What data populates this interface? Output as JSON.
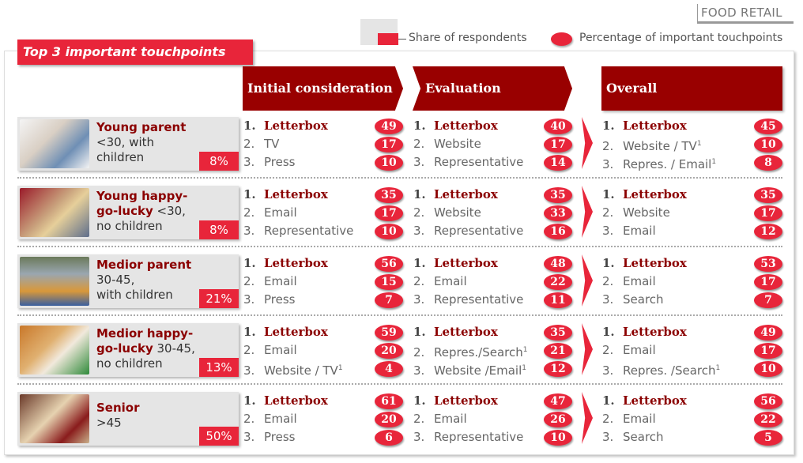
{
  "header": {
    "corner_label": "FOOD RETAIL",
    "title": "Top 3 important touchpoints",
    "legend": [
      {
        "icon": "bar-icon",
        "label": "Share of respondents"
      },
      {
        "icon": "ellipse-icon",
        "label": "Percentage of important touchpoints"
      }
    ]
  },
  "phases": [
    {
      "label": "Initial consideration"
    },
    {
      "label": "Evaluation"
    },
    {
      "label": "Overall"
    }
  ],
  "colors": {
    "accent": "#e8253a",
    "dark_red": "#990000",
    "card_bg": "#e5e5e5"
  },
  "segments": [
    {
      "name": "Young parent",
      "detail": "<30, with children",
      "share": "8%",
      "initial": [
        {
          "n": "1.",
          "t": "Letterbox",
          "v": "49"
        },
        {
          "n": "2.",
          "t": "TV",
          "v": "17"
        },
        {
          "n": "3.",
          "t": "Press",
          "v": "10"
        }
      ],
      "evaluation": [
        {
          "n": "1.",
          "t": "Letterbox",
          "v": "40"
        },
        {
          "n": "2.",
          "t": "Website",
          "v": "17"
        },
        {
          "n": "3.",
          "t": "Representative",
          "v": "14"
        }
      ],
      "overall": [
        {
          "n": "1.",
          "t": "Letterbox",
          "v": "45"
        },
        {
          "n": "2.",
          "t": "Website / TV",
          "sup": "1",
          "v": "10"
        },
        {
          "n": "3.",
          "t": "Repres. / Email",
          "sup": "1",
          "v": "8"
        }
      ]
    },
    {
      "name": "Young happy-go-lucky",
      "detail": "<30, no children",
      "share": "8%",
      "initial": [
        {
          "n": "1.",
          "t": "Letterbox",
          "v": "35"
        },
        {
          "n": "2.",
          "t": "Email",
          "v": "17"
        },
        {
          "n": "3.",
          "t": "Representative",
          "v": "10"
        }
      ],
      "evaluation": [
        {
          "n": "1.",
          "t": "Letterbox",
          "v": "35"
        },
        {
          "n": "2.",
          "t": "Website",
          "v": "33"
        },
        {
          "n": "3.",
          "t": "Representative",
          "v": "16"
        }
      ],
      "overall": [
        {
          "n": "1.",
          "t": "Letterbox",
          "v": "35"
        },
        {
          "n": "2.",
          "t": "Website",
          "v": "17"
        },
        {
          "n": "3.",
          "t": "Email",
          "v": "12"
        }
      ]
    },
    {
      "name": "Medior parent",
      "detail": "30-45, with children",
      "share": "21%",
      "initial": [
        {
          "n": "1.",
          "t": "Letterbox",
          "v": "56"
        },
        {
          "n": "2.",
          "t": "Email",
          "v": "15"
        },
        {
          "n": "3.",
          "t": "Press",
          "v": "7"
        }
      ],
      "evaluation": [
        {
          "n": "1.",
          "t": "Letterbox",
          "v": "48"
        },
        {
          "n": "2.",
          "t": "Email",
          "v": "22"
        },
        {
          "n": "3.",
          "t": "Representative",
          "v": "11"
        }
      ],
      "overall": [
        {
          "n": "1.",
          "t": "Letterbox",
          "v": "53"
        },
        {
          "n": "2.",
          "t": "Email",
          "v": "17"
        },
        {
          "n": "3.",
          "t": "Search",
          "v": "7"
        }
      ]
    },
    {
      "name": "Medior happy-go-lucky",
      "detail": "30-45, no children",
      "share": "13%",
      "initial": [
        {
          "n": "1.",
          "t": "Letterbox",
          "v": "59"
        },
        {
          "n": "2.",
          "t": "Email",
          "v": "20"
        },
        {
          "n": "3.",
          "t": "Website / TV",
          "sup": "1",
          "v": "4"
        }
      ],
      "evaluation": [
        {
          "n": "1.",
          "t": "Letterbox",
          "v": "35"
        },
        {
          "n": "2.",
          "t": "Repres./Search",
          "sup": "1",
          "v": "21"
        },
        {
          "n": "3.",
          "t": "Website /Email",
          "sup": "1",
          "v": "12"
        }
      ],
      "overall": [
        {
          "n": "1.",
          "t": "Letterbox",
          "v": "49"
        },
        {
          "n": "2.",
          "t": "Email",
          "v": "17"
        },
        {
          "n": "3.",
          "t": "Repres. /Search",
          "sup": "1",
          "v": "10"
        }
      ]
    },
    {
      "name": "Senior",
      "detail": ">45",
      "share": "50%",
      "initial": [
        {
          "n": "1.",
          "t": "Letterbox",
          "v": "61"
        },
        {
          "n": "2.",
          "t": "Email",
          "v": "20"
        },
        {
          "n": "3.",
          "t": "Press",
          "v": "6"
        }
      ],
      "evaluation": [
        {
          "n": "1.",
          "t": "Letterbox",
          "v": "47"
        },
        {
          "n": "2.",
          "t": "Email",
          "v": "26"
        },
        {
          "n": "3.",
          "t": "Representative",
          "v": "10"
        }
      ],
      "overall": [
        {
          "n": "1.",
          "t": "Letterbox",
          "v": "56"
        },
        {
          "n": "2.",
          "t": "Email",
          "v": "22"
        },
        {
          "n": "3.",
          "t": "Search",
          "v": "5"
        }
      ]
    }
  ]
}
